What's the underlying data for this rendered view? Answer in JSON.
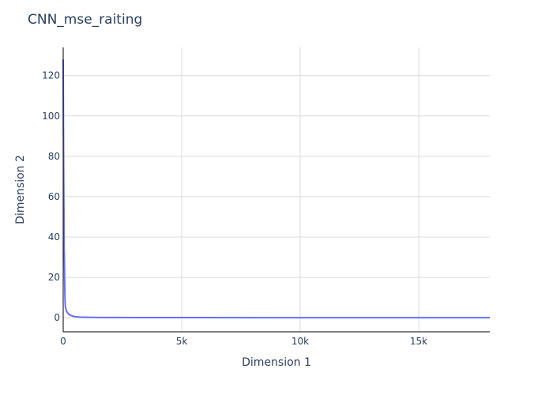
{
  "chart_data": {
    "type": "line",
    "title": "CNN_mse_raiting",
    "xlabel": "Dimension 1",
    "ylabel": "Dimension 2",
    "xlim": [
      0,
      18000
    ],
    "ylim": [
      -7,
      134
    ],
    "x_ticks": [
      0,
      5000,
      10000,
      15000
    ],
    "x_tick_labels": [
      "0",
      "5k",
      "10k",
      "15k"
    ],
    "y_ticks": [
      0,
      20,
      40,
      60,
      80,
      100,
      120
    ],
    "y_tick_labels": [
      "0",
      "20",
      "40",
      "60",
      "80",
      "100",
      "120"
    ],
    "grid": true,
    "legend": "none",
    "line_color": "#636efa",
    "series": [
      {
        "x": [
          0,
          10,
          20,
          30,
          40,
          50,
          60,
          70,
          80,
          90,
          100,
          120,
          150,
          200,
          250,
          300,
          400,
          500,
          700,
          1000,
          1500,
          2000,
          3000,
          5000,
          8000,
          12000,
          15000,
          18000
        ],
        "values": [
          128,
          95,
          72,
          55,
          35,
          30,
          20,
          12,
          8,
          6,
          5,
          4,
          3,
          2.2,
          1.6,
          1.2,
          0.8,
          0.5,
          0.3,
          0.2,
          0.1,
          0.08,
          0.05,
          0.03,
          0.02,
          0.01,
          0.01,
          0.01
        ]
      }
    ]
  }
}
